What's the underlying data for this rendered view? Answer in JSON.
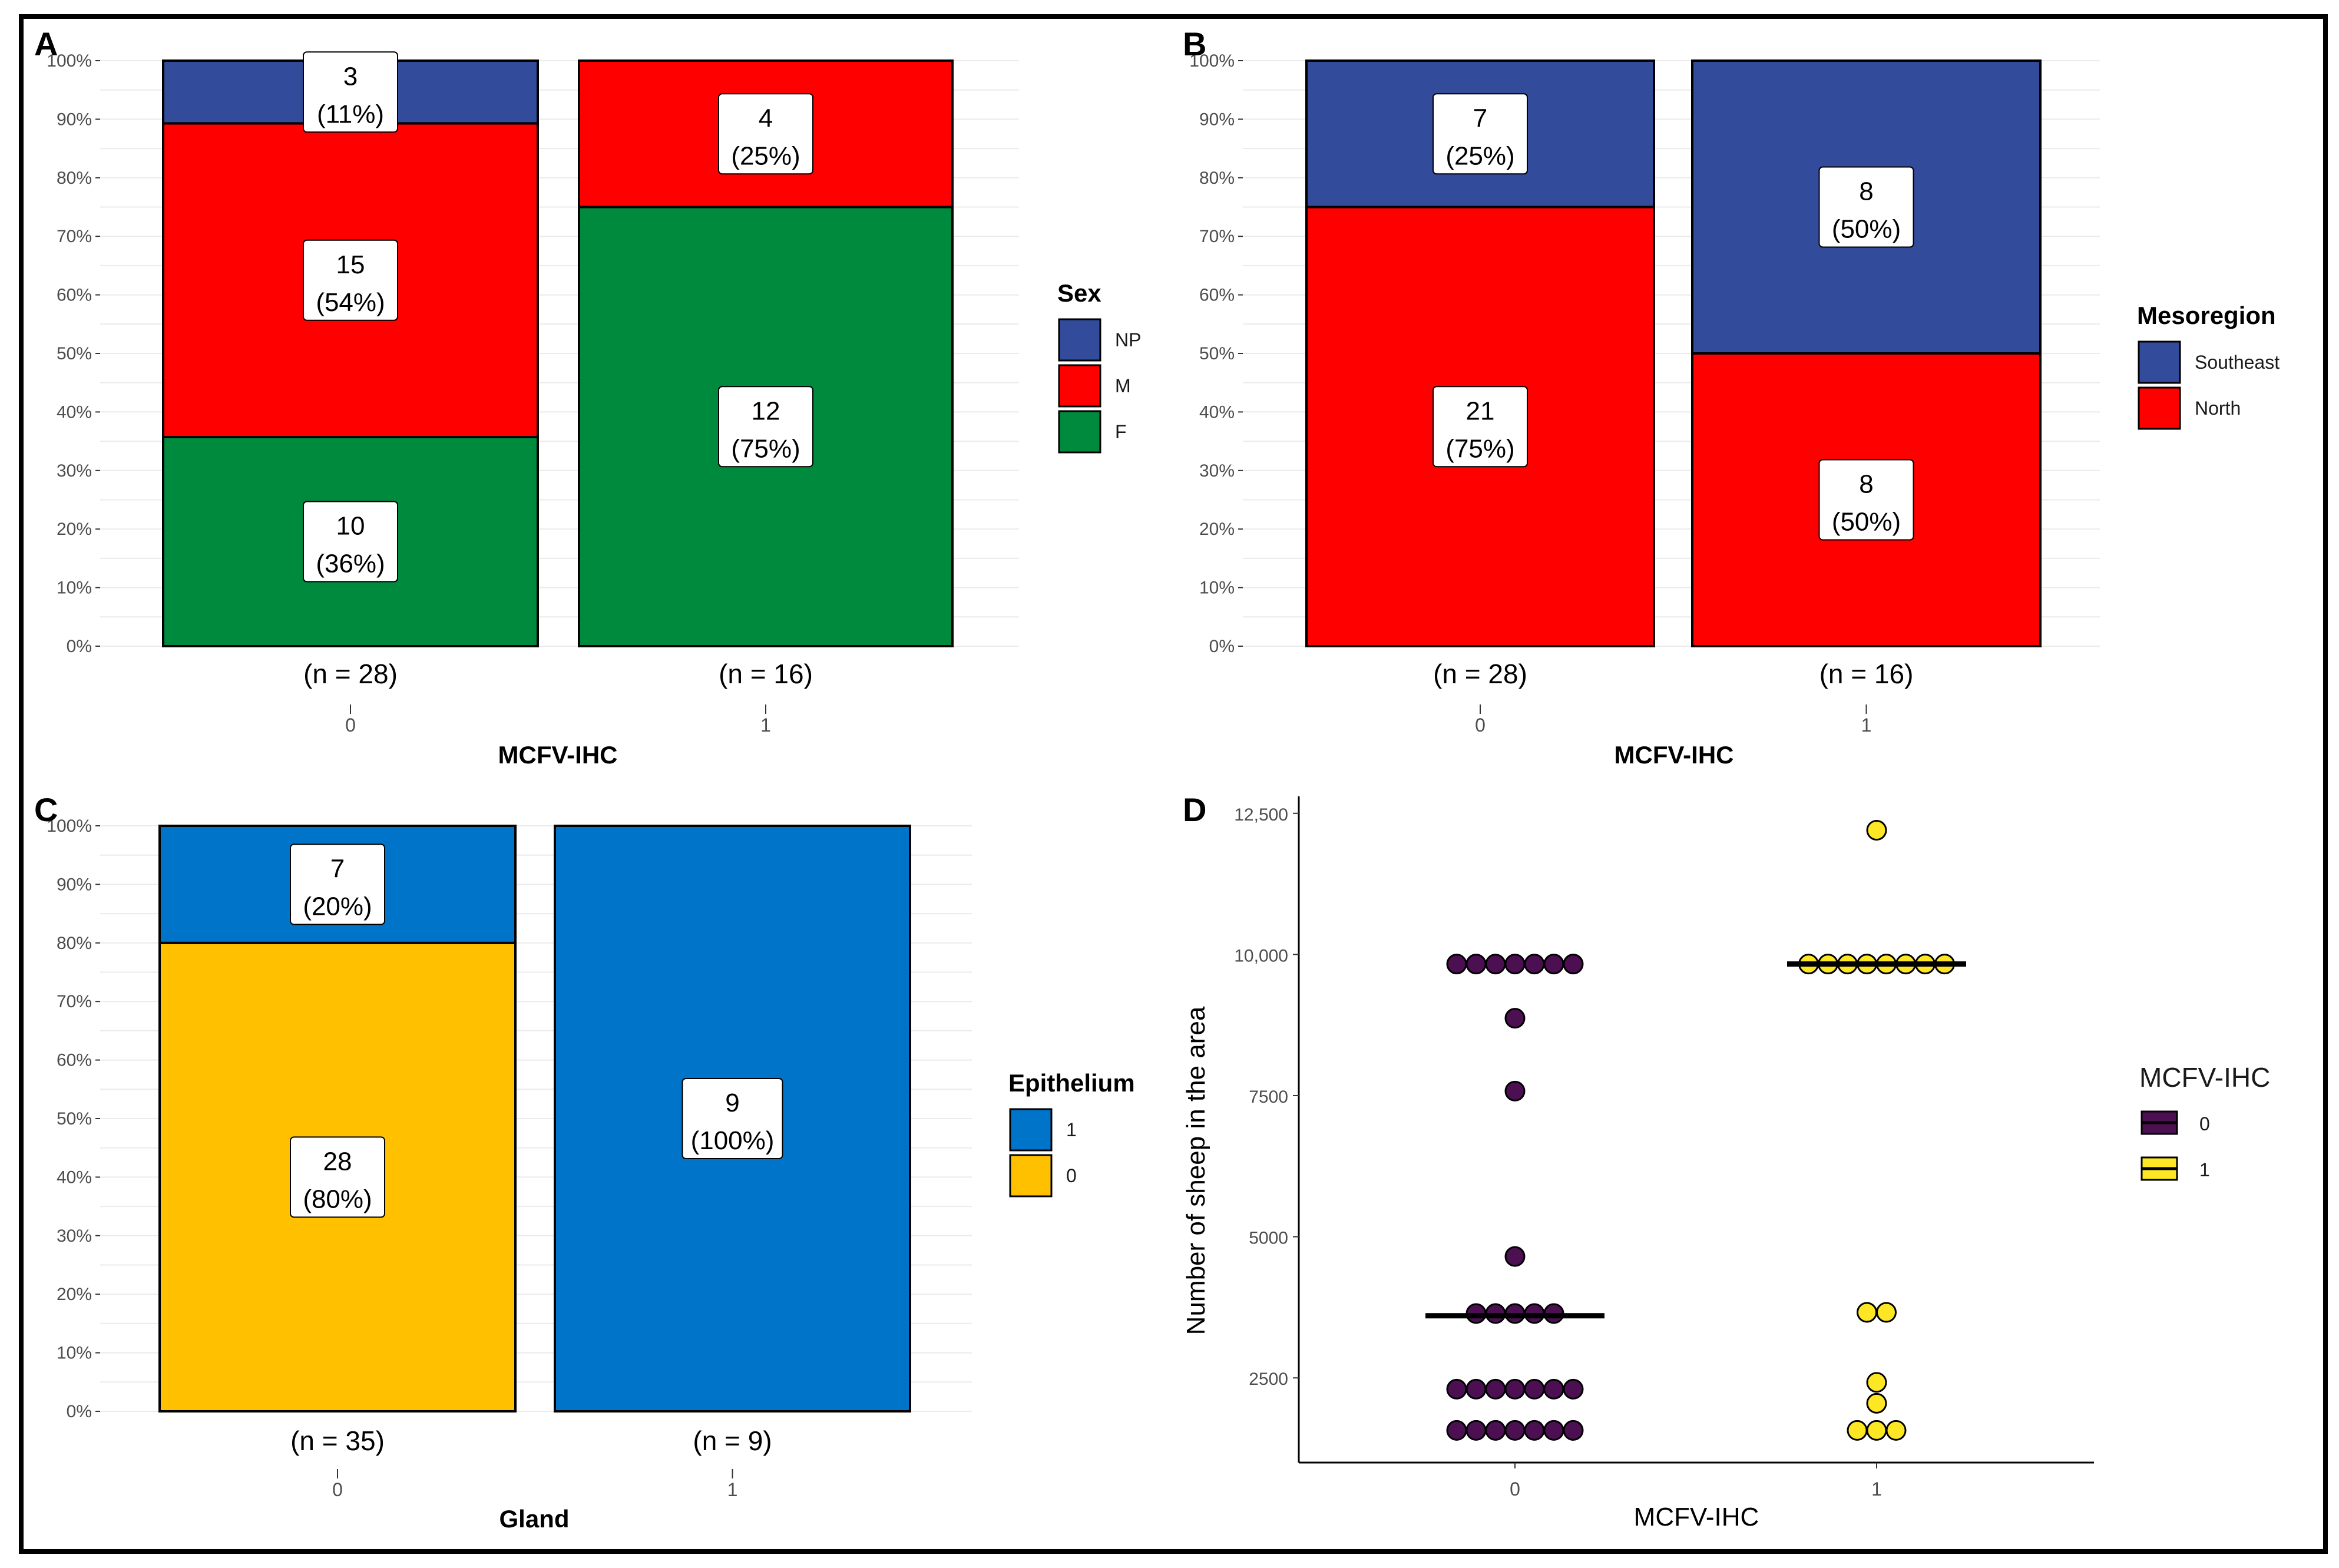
{
  "panels": {
    "A": {
      "letter": "A"
    },
    "B": {
      "letter": "B"
    },
    "C": {
      "letter": "C"
    },
    "D": {
      "letter": "D"
    }
  },
  "colors": {
    "navy": "#324b9a",
    "red": "#ff0000",
    "green": "#008a3e",
    "blue": "#0074c8",
    "gold": "#ffc000",
    "purple": "#4b0f52",
    "yellow": "#fde725"
  },
  "chart_data": [
    {
      "id": "A",
      "type": "bar",
      "stacked": true,
      "percent": true,
      "categories": [
        "0",
        "1"
      ],
      "n_labels": [
        "(n = 28)",
        "(n = 16)"
      ],
      "xlabel": "MCFV-IHC",
      "ylabel": "",
      "ylim": [
        0,
        100
      ],
      "yticks": [
        "0%",
        "10%",
        "20%",
        "30%",
        "40%",
        "50%",
        "60%",
        "70%",
        "80%",
        "90%",
        "100%"
      ],
      "legend_title": "Sex",
      "series": [
        {
          "name": "F",
          "color": "#008a3e",
          "counts": [
            10,
            12
          ],
          "pct_labels": [
            "(36%)",
            "(75%)"
          ]
        },
        {
          "name": "M",
          "color": "#ff0000",
          "counts": [
            15,
            4
          ],
          "pct_labels": [
            "(54%)",
            "(25%)"
          ]
        },
        {
          "name": "NP",
          "color": "#324b9a",
          "counts": [
            3,
            0
          ],
          "pct_labels": [
            "(11%)",
            ""
          ]
        }
      ]
    },
    {
      "id": "B",
      "type": "bar",
      "stacked": true,
      "percent": true,
      "categories": [
        "0",
        "1"
      ],
      "n_labels": [
        "(n = 28)",
        "(n = 16)"
      ],
      "xlabel": "MCFV-IHC",
      "ylabel": "",
      "ylim": [
        0,
        100
      ],
      "yticks": [
        "0%",
        "10%",
        "20%",
        "30%",
        "40%",
        "50%",
        "60%",
        "70%",
        "80%",
        "90%",
        "100%"
      ],
      "legend_title": "Mesoregion",
      "series": [
        {
          "name": "North",
          "color": "#ff0000",
          "counts": [
            21,
            8
          ],
          "pct_labels": [
            "(75%)",
            "(50%)"
          ]
        },
        {
          "name": "Southeast",
          "color": "#324b9a",
          "counts": [
            7,
            8
          ],
          "pct_labels": [
            "(25%)",
            "(50%)"
          ]
        }
      ]
    },
    {
      "id": "C",
      "type": "bar",
      "stacked": true,
      "percent": true,
      "categories": [
        "0",
        "1"
      ],
      "n_labels": [
        "(n = 35)",
        "(n = 9)"
      ],
      "xlabel": "Gland",
      "ylabel": "",
      "ylim": [
        0,
        100
      ],
      "yticks": [
        "0%",
        "10%",
        "20%",
        "30%",
        "40%",
        "50%",
        "60%",
        "70%",
        "80%",
        "90%",
        "100%"
      ],
      "legend_title": "Epithelium",
      "series": [
        {
          "name": "0",
          "color": "#ffc000",
          "counts": [
            28,
            0
          ],
          "pct_labels": [
            "(80%)",
            ""
          ]
        },
        {
          "name": "1",
          "color": "#0074c8",
          "counts": [
            7,
            9
          ],
          "pct_labels": [
            "(20%)",
            "(100%)"
          ]
        }
      ]
    },
    {
      "id": "D",
      "type": "scatter",
      "subtype": "dotplot",
      "categories": [
        "0",
        "1"
      ],
      "xlabel": "MCFV-IHC",
      "ylabel": "Number of sheep in the area",
      "ylim": [
        1000,
        12800
      ],
      "yticks": [
        2500,
        5000,
        7500,
        10000,
        12500
      ],
      "ytick_labels": [
        "2500",
        "5000",
        "7500",
        "10,000",
        "12,500"
      ],
      "legend_title": "MCFV-IHC",
      "series": [
        {
          "name": "0",
          "color": "#4b0f52",
          "median": 3600,
          "values": [
            9830,
            9830,
            9830,
            9830,
            9830,
            9830,
            9830,
            8870,
            7580,
            4650,
            3640,
            3640,
            3640,
            3640,
            3640,
            2300,
            2300,
            2300,
            2300,
            2300,
            2300,
            2300,
            1570,
            1570,
            1570,
            1570,
            1570,
            1570,
            1570
          ]
        },
        {
          "name": "1",
          "color": "#fde725",
          "median": 9830,
          "values": [
            12200,
            9830,
            9830,
            9830,
            9830,
            9830,
            9830,
            9830,
            9830,
            3660,
            3660,
            2420,
            2050,
            1570,
            1570,
            1570
          ]
        }
      ]
    }
  ]
}
